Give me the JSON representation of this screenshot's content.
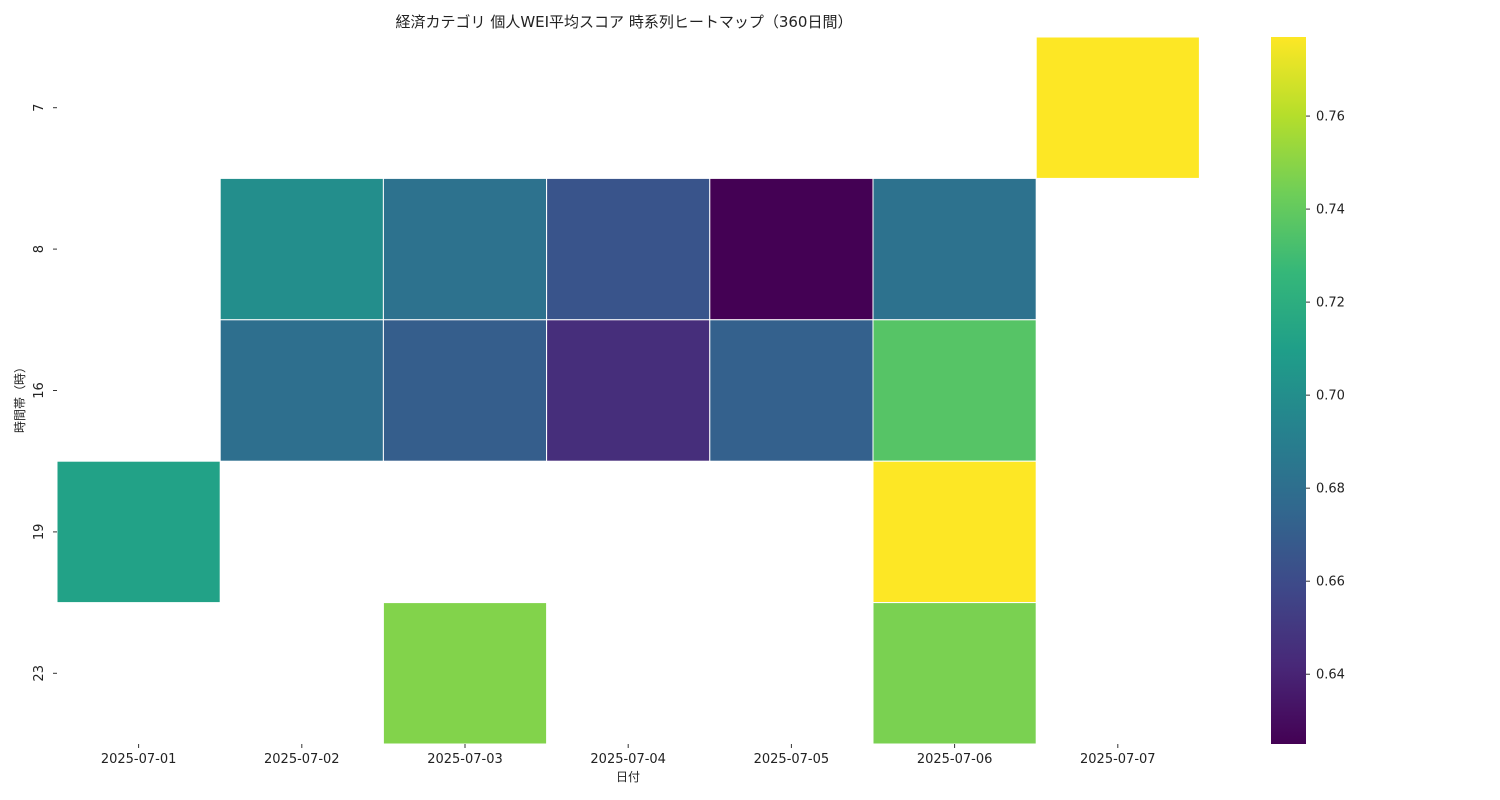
{
  "chart_data": {
    "type": "heatmap",
    "title": "経済カテゴリ 個人WEI平均スコア 時系列ヒートマップ（360日間）",
    "xlabel": "日付",
    "ylabel": "時間帯（時）",
    "x": [
      "2025-07-01",
      "2025-07-02",
      "2025-07-03",
      "2025-07-04",
      "2025-07-05",
      "2025-07-06",
      "2025-07-07"
    ],
    "y": [
      "7",
      "8",
      "16",
      "19",
      "23"
    ],
    "values": [
      [
        null,
        null,
        null,
        null,
        null,
        null,
        0.777
      ],
      [
        null,
        0.7,
        0.682,
        0.665,
        0.625,
        0.682,
        null
      ],
      [
        null,
        0.68,
        0.67,
        0.645,
        0.672,
        0.736,
        null
      ],
      [
        0.712,
        null,
        null,
        null,
        null,
        0.777,
        null
      ],
      [
        null,
        null,
        0.748,
        null,
        null,
        0.746,
        null
      ]
    ],
    "colorbar": {
      "colormap": "viridis",
      "range": [
        0.625,
        0.777
      ],
      "ticks": [
        0.64,
        0.66,
        0.68,
        0.7,
        0.72,
        0.74,
        0.76
      ],
      "tick_labels": [
        "0.64",
        "0.66",
        "0.68",
        "0.70",
        "0.72",
        "0.74",
        "0.76"
      ]
    },
    "missing_cells": "blank",
    "grid": false,
    "legend": "colorbar-right"
  }
}
